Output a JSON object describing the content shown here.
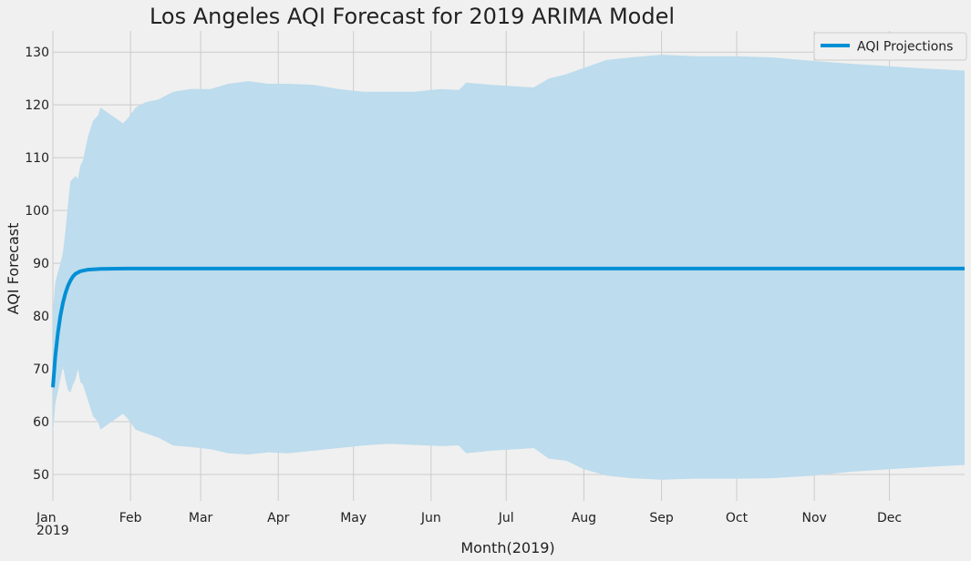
{
  "chart_data": {
    "type": "line",
    "title": "Los Angeles AQI Forecast for 2019 ARIMA Model",
    "xlabel": "Month(2019)",
    "ylabel": "AQI Forecast",
    "xlim": [
      "2019-01-01",
      "2019-12-31"
    ],
    "ylim": [
      45,
      134
    ],
    "yticks": [
      50,
      60,
      70,
      80,
      90,
      100,
      110,
      120,
      130
    ],
    "xticks": [
      {
        "date": "2019-01-01",
        "label": "Jan",
        "sublabel": "2019"
      },
      {
        "date": "2019-02-01",
        "label": "Feb"
      },
      {
        "date": "2019-03-01",
        "label": "Mar"
      },
      {
        "date": "2019-04-01",
        "label": "Apr"
      },
      {
        "date": "2019-05-01",
        "label": "May"
      },
      {
        "date": "2019-06-01",
        "label": "Jun"
      },
      {
        "date": "2019-07-01",
        "label": "Jul"
      },
      {
        "date": "2019-08-01",
        "label": "Aug"
      },
      {
        "date": "2019-09-01",
        "label": "Sep"
      },
      {
        "date": "2019-10-01",
        "label": "Oct"
      },
      {
        "date": "2019-11-01",
        "label": "Nov"
      },
      {
        "date": "2019-12-01",
        "label": "Dec"
      }
    ],
    "grid": true,
    "legend_position": "top-right",
    "series": [
      {
        "name": "AQI Projections",
        "color": "#008fd5",
        "points": [
          [
            "2019-01-01",
            66.5
          ],
          [
            "2019-01-02",
            72.5
          ],
          [
            "2019-01-03",
            76.8
          ],
          [
            "2019-01-04",
            80.0
          ],
          [
            "2019-01-05",
            82.5
          ],
          [
            "2019-01-06",
            84.3
          ],
          [
            "2019-01-07",
            85.7
          ],
          [
            "2019-01-08",
            86.7
          ],
          [
            "2019-01-09",
            87.5
          ],
          [
            "2019-01-10",
            88.0
          ],
          [
            "2019-01-12",
            88.5
          ],
          [
            "2019-01-15",
            88.8
          ],
          [
            "2019-01-20",
            88.95
          ],
          [
            "2019-01-31",
            89.0
          ],
          [
            "2019-03-01",
            89.0
          ],
          [
            "2019-06-01",
            89.0
          ],
          [
            "2019-09-01",
            89.0
          ],
          [
            "2019-12-31",
            89.0
          ]
        ]
      }
    ],
    "confidence_band": {
      "color": "#bddced",
      "points": [
        [
          "2019-01-01",
          57.5,
          81.0
        ],
        [
          "2019-01-02",
          63.5,
          86.5
        ],
        [
          "2019-01-04",
          68.0,
          90.0
        ],
        [
          "2019-01-05",
          70.5,
          92.0
        ],
        [
          "2019-01-06",
          68.0,
          96.0
        ],
        [
          "2019-01-07",
          66.0,
          101.0
        ],
        [
          "2019-01-08",
          65.5,
          105.5
        ],
        [
          "2019-01-09",
          67.0,
          106.0
        ],
        [
          "2019-01-10",
          68.0,
          106.5
        ],
        [
          "2019-01-11",
          70.0,
          106.0
        ],
        [
          "2019-01-12",
          67.5,
          108.5
        ],
        [
          "2019-01-13",
          67.0,
          109.5
        ],
        [
          "2019-01-15",
          64.0,
          114.0
        ],
        [
          "2019-01-17",
          61.0,
          117.0
        ],
        [
          "2019-01-19",
          60.0,
          118.0
        ],
        [
          "2019-01-20",
          58.5,
          119.5
        ],
        [
          "2019-01-23",
          59.5,
          118.5
        ],
        [
          "2019-01-26",
          60.5,
          117.5
        ],
        [
          "2019-01-29",
          61.5,
          116.5
        ],
        [
          "2019-01-31",
          60.5,
          117.5
        ],
        [
          "2019-02-03",
          58.5,
          119.5
        ],
        [
          "2019-02-07",
          57.8,
          120.5
        ],
        [
          "2019-02-12",
          57.0,
          121.0
        ],
        [
          "2019-02-18",
          55.5,
          122.5
        ],
        [
          "2019-02-25",
          55.2,
          123.0
        ],
        [
          "2019-03-05",
          54.8,
          123.0
        ],
        [
          "2019-03-12",
          54.0,
          124.0
        ],
        [
          "2019-03-20",
          53.8,
          124.5
        ],
        [
          "2019-03-28",
          54.2,
          124.0
        ],
        [
          "2019-04-05",
          54.0,
          124.0
        ],
        [
          "2019-04-15",
          54.5,
          123.8
        ],
        [
          "2019-04-25",
          55.0,
          123.0
        ],
        [
          "2019-05-05",
          55.5,
          122.5
        ],
        [
          "2019-05-15",
          55.8,
          122.5
        ],
        [
          "2019-05-25",
          55.6,
          122.5
        ],
        [
          "2019-06-05",
          55.4,
          123.0
        ],
        [
          "2019-06-12",
          55.5,
          122.8
        ],
        [
          "2019-06-15",
          54.0,
          124.2
        ],
        [
          "2019-06-25",
          54.5,
          123.8
        ],
        [
          "2019-07-05",
          54.8,
          123.5
        ],
        [
          "2019-07-12",
          55.0,
          123.3
        ],
        [
          "2019-07-18",
          53.0,
          125.0
        ],
        [
          "2019-07-25",
          52.6,
          125.8
        ],
        [
          "2019-08-01",
          51.0,
          127.0
        ],
        [
          "2019-08-10",
          49.8,
          128.5
        ],
        [
          "2019-08-20",
          49.3,
          129.0
        ],
        [
          "2019-09-01",
          49.0,
          129.5
        ],
        [
          "2019-09-15",
          49.2,
          129.2
        ],
        [
          "2019-10-01",
          49.2,
          129.2
        ],
        [
          "2019-10-15",
          49.3,
          129.0
        ],
        [
          "2019-11-01",
          49.8,
          128.3
        ],
        [
          "2019-11-15",
          50.5,
          127.8
        ],
        [
          "2019-12-01",
          51.0,
          127.3
        ],
        [
          "2019-12-15",
          51.4,
          126.9
        ],
        [
          "2019-12-31",
          51.8,
          126.5
        ]
      ]
    }
  }
}
